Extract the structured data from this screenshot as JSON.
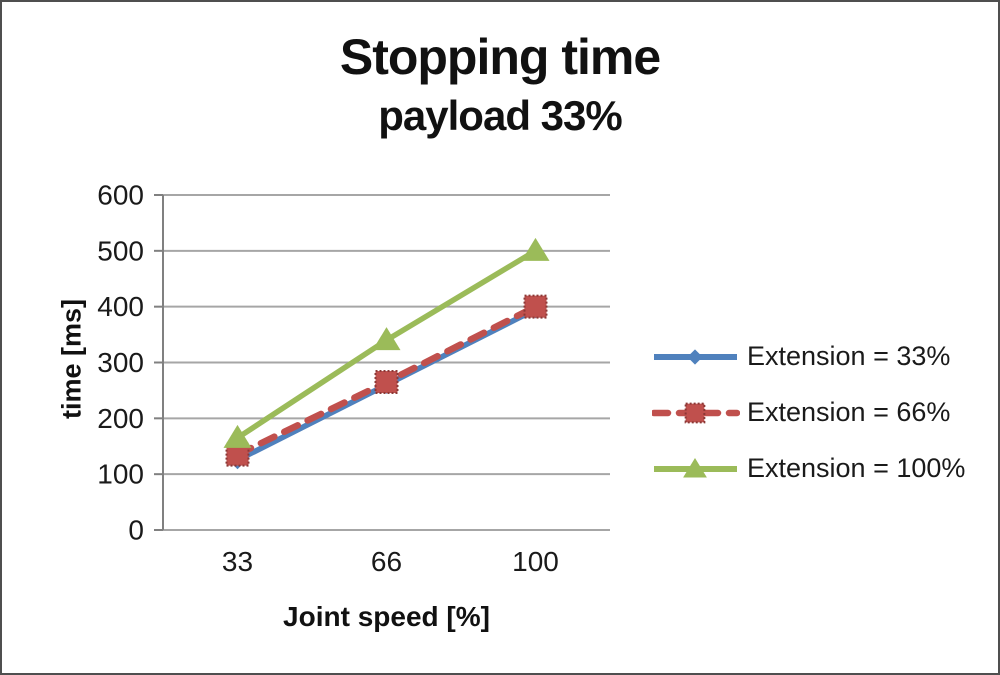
{
  "chart_data": {
    "type": "line",
    "title": "Stopping time",
    "subtitle": "payload 33%",
    "xlabel": "Joint speed [%]",
    "ylabel": "time [ms]",
    "categories": [
      "33",
      "66",
      "100"
    ],
    "x_values": [
      33,
      66,
      100
    ],
    "ylim": [
      0,
      600
    ],
    "yticks": [
      0,
      100,
      200,
      300,
      400,
      500,
      600
    ],
    "grid": true,
    "legend_position": "right-middle",
    "series": [
      {
        "name": "Extension = 33%",
        "values": [
          125,
          260,
          395
        ],
        "color": "#4F81BD",
        "marker": "diamond",
        "line_style": "solid"
      },
      {
        "name": "Extension = 66%",
        "values": [
          135,
          265,
          400
        ],
        "color": "#C0504D",
        "marker": "square",
        "marker_stroke": "#8C3836",
        "line_style": "dashed"
      },
      {
        "name": "Extension = 100%",
        "values": [
          165,
          340,
          500
        ],
        "color": "#9BBB59",
        "marker": "triangle",
        "line_style": "solid"
      }
    ],
    "colors": {
      "axis": "#808080",
      "gridline": "#A6A6A6",
      "tick_text": "#1A1A1A",
      "frame_border": "#4F4F4F"
    }
  }
}
